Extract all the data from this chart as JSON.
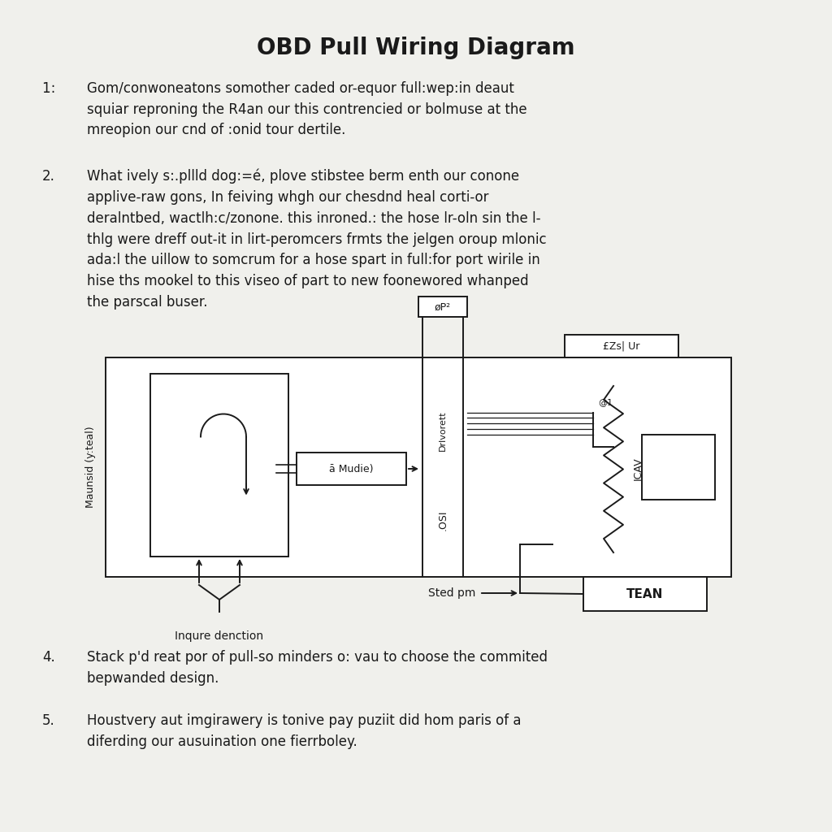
{
  "title": "OBD Pull Wiring Diagram",
  "background_color": "#f0f0ec",
  "text_color": "#1a1a1a",
  "para1_number": "1:  ",
  "para1_text": "Gom/conwoneatons somother caded or-equor full:wep:in deaut\nsquiar reproning the R4an our this contrencied or bolmuse at the\nmreopion our cnd of :onid tour dertile.",
  "para2_number": "2.",
  "para2_text": "What ively s:.pllld dog:=é, plove stibstee berm enth our conone\napplive-raw gons, In feiving whgh our chesdnd heal corti-or\nderalntbed, wactlh:c/zonone. this inroned.: the hose lr-oln sin the l-\nthlg were dreff out-it in lirt-peromcers frmts the jelgen oroup mlonic\nada:l the uillow to somcrum for a hose spart in full:for port wirile in\nhise ths mookel to this viseo of part to new foonewored whanped\nthe parscal buser.",
  "para4_number": "4.",
  "para4_text": "Stack p'd reat por of pull-so minders o: vau to choose the commited\nbepwanded design.",
  "para5_number": "5.",
  "para5_text": "Houstvery aut imgirawery is tonive pay puziit did hom paris of a\ndiferding our ausuination one fierrboley.",
  "diag_label_left": "Maunsid (y:teal)",
  "diag_label_bottom": "Inqure denction",
  "diag_label_center_top": "Drlvorett",
  "diag_box_top_center": "øP²",
  "diag_box_top_right": "£Zs| Ur",
  "diag_label_osi": ".OSI",
  "diag_label_module": "ā Mudie)",
  "diag_label_ican": "ICAV",
  "diag_label_stedpm": "Sted pm",
  "diag_box_tean": "TEAN",
  "font_size_title": 20,
  "font_size_body": 12,
  "font_size_diagram": 9
}
